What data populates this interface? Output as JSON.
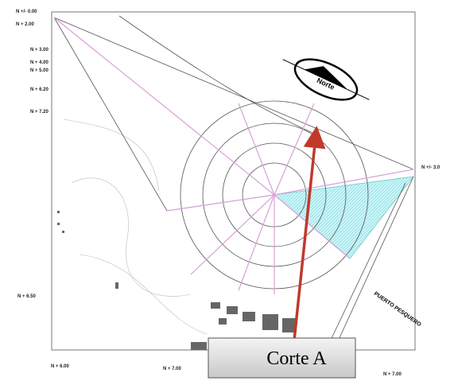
{
  "levels": [
    "N +/- 0.00",
    "N + 2.00",
    "N + 3.00",
    "N + 4.00",
    "N + 5.00",
    "N + 6.20",
    "N + 7.20",
    "N +/- 3.0",
    "N + 6.50",
    "N + 6.00",
    "N + 7.00",
    "N + 7.00"
  ],
  "north": "Norte",
  "port": "PUERTO PESQUERO",
  "section": "Corte A"
}
